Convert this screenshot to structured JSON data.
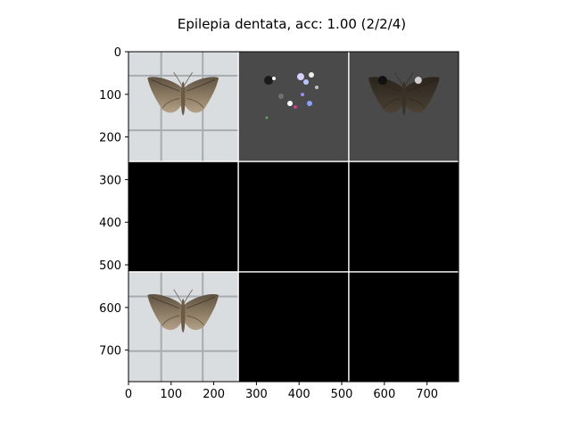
{
  "chart_data": {
    "type": "image_grid",
    "title": "Epilepia dentata, acc: 1.00 (2/2/4)",
    "xlim": [
      0,
      774
    ],
    "ylim": [
      0,
      774
    ],
    "xticks": [
      0,
      100,
      200,
      300,
      400,
      500,
      600,
      700
    ],
    "yticks": [
      0,
      100,
      200,
      300,
      400,
      500,
      600,
      700
    ],
    "grid": {
      "rows": 3,
      "cols": 3,
      "cell_size": 256,
      "gap": 3
    },
    "cells": [
      {
        "row": 0,
        "col": 0,
        "content": "moth-photo-original"
      },
      {
        "row": 0,
        "col": 1,
        "content": "saliency-map"
      },
      {
        "row": 0,
        "col": 2,
        "content": "masked-moth"
      },
      {
        "row": 1,
        "col": 0,
        "content": "black"
      },
      {
        "row": 1,
        "col": 1,
        "content": "black"
      },
      {
        "row": 1,
        "col": 2,
        "content": "black"
      },
      {
        "row": 2,
        "col": 0,
        "content": "moth-photo-reference"
      },
      {
        "row": 2,
        "col": 1,
        "content": "black"
      },
      {
        "row": 2,
        "col": 2,
        "content": "black"
      }
    ]
  }
}
